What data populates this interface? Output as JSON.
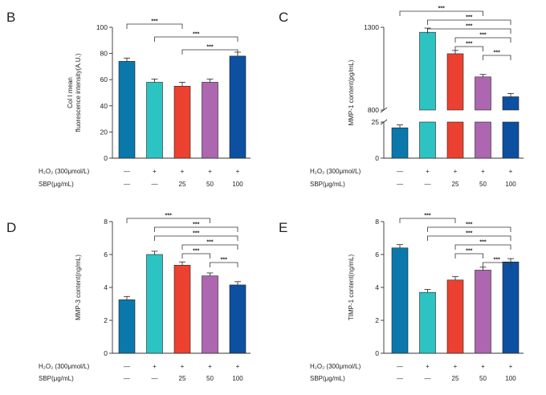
{
  "colors": [
    "#0a78ab",
    "#2ec3c3",
    "#ec4130",
    "#ad66b0",
    "#0d4fa0"
  ],
  "conditions": {
    "row1_label": "H₂O₂ (300μmol/L)",
    "row2_label": "SBP(μg/mL)",
    "row1_values": [
      "—",
      "+",
      "+",
      "+",
      "+"
    ],
    "row2_values": [
      "—",
      "—",
      "25",
      "50",
      "100"
    ]
  },
  "chart_data": [
    {
      "panel": "B",
      "type": "bar",
      "ylabel": [
        "Col I mean",
        "fluorescence intensity(A.U.)"
      ],
      "ylim": [
        0,
        100
      ],
      "yticks": [
        0,
        20,
        40,
        60,
        80,
        100
      ],
      "values": [
        74,
        58,
        55,
        58,
        78
      ],
      "errors": [
        2.5,
        2.5,
        3,
        2.5,
        3
      ],
      "significance": [
        {
          "from": 0,
          "to": 2,
          "label": "***"
        },
        {
          "from": 1,
          "to": 4,
          "label": "***"
        },
        {
          "from": 2,
          "to": 4,
          "label": "***"
        }
      ]
    },
    {
      "panel": "C",
      "type": "bar",
      "ylabel": [
        "MMP-1 content(pg/mL)"
      ],
      "broken_axis": true,
      "lower_range": [
        0,
        25
      ],
      "upper_range": [
        800,
        1300
      ],
      "yticks": [
        0,
        25,
        800,
        1300
      ],
      "values": [
        21,
        1270,
        1140,
        1000,
        880
      ],
      "errors": [
        2,
        25,
        20,
        15,
        20
      ],
      "significance": [
        {
          "from": 0,
          "to": 3,
          "label": "***"
        },
        {
          "from": 1,
          "to": 4,
          "label": "***"
        },
        {
          "from": 1,
          "to": 4,
          "label": "***"
        },
        {
          "from": 2,
          "to": 4,
          "label": "***"
        },
        {
          "from": 2,
          "to": 3,
          "label": "***"
        },
        {
          "from": 3,
          "to": 4,
          "label": "***"
        }
      ]
    },
    {
      "panel": "D",
      "type": "bar",
      "ylabel": [
        "MMP-3 content(ng/mL)"
      ],
      "ylim": [
        0,
        8
      ],
      "yticks": [
        0,
        2,
        4,
        6,
        8
      ],
      "values": [
        3.25,
        6.0,
        5.35,
        4.7,
        4.15
      ],
      "errors": [
        0.2,
        0.2,
        0.2,
        0.18,
        0.2
      ],
      "significance": [
        {
          "from": 0,
          "to": 3,
          "label": "***"
        },
        {
          "from": 1,
          "to": 4,
          "label": "***"
        },
        {
          "from": 1,
          "to": 4,
          "label": "***"
        },
        {
          "from": 2,
          "to": 4,
          "label": "***"
        },
        {
          "from": 2,
          "to": 3,
          "label": "***"
        },
        {
          "from": 3,
          "to": 4,
          "label": "***"
        }
      ]
    },
    {
      "panel": "E",
      "type": "bar",
      "ylabel": [
        "TIMP-1 content(ng/mL)"
      ],
      "ylim": [
        0,
        8
      ],
      "yticks": [
        0,
        2,
        4,
        6,
        8
      ],
      "values": [
        6.4,
        3.7,
        4.45,
        5.05,
        5.55
      ],
      "errors": [
        0.2,
        0.18,
        0.2,
        0.18,
        0.2
      ],
      "significance": [
        {
          "from": 0,
          "to": 2,
          "label": "***"
        },
        {
          "from": 1,
          "to": 4,
          "label": "***"
        },
        {
          "from": 1,
          "to": 4,
          "label": "***"
        },
        {
          "from": 2,
          "to": 4,
          "label": "***"
        },
        {
          "from": 2,
          "to": 3,
          "label": "***"
        },
        {
          "from": 3,
          "to": 4,
          "label": "***"
        }
      ]
    }
  ]
}
